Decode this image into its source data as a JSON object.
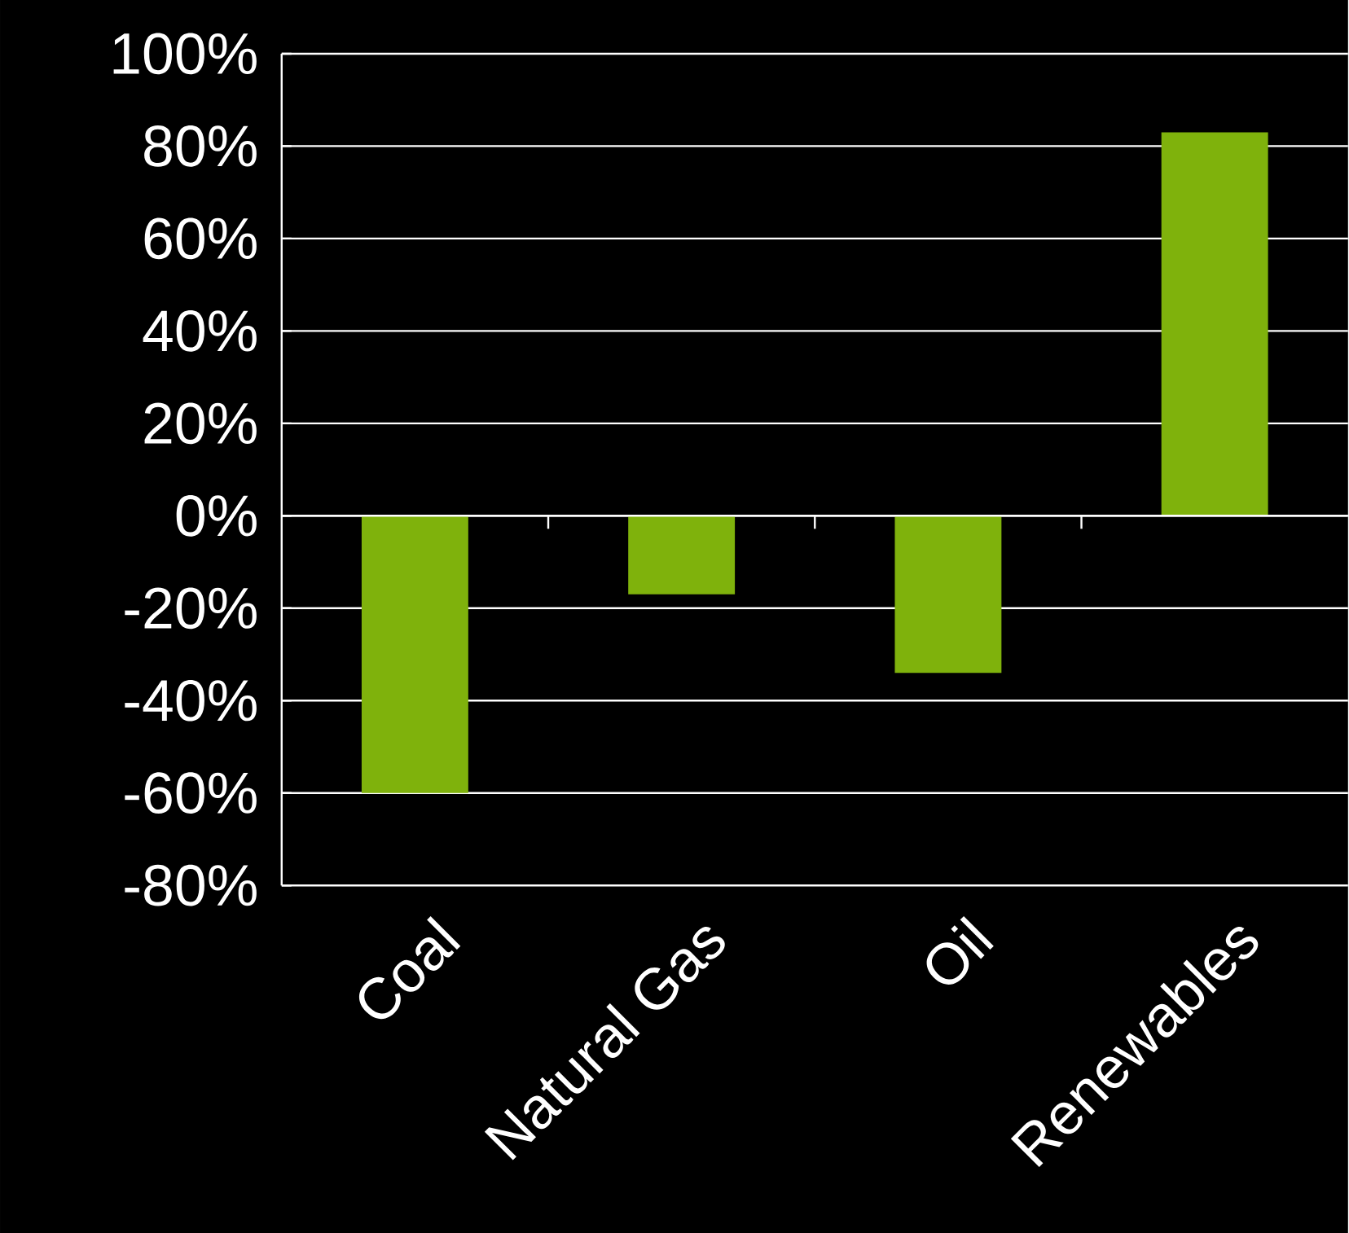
{
  "chart_data": {
    "type": "bar",
    "categories": [
      "Coal",
      "Natural Gas",
      "Oil",
      "Renewables"
    ],
    "values": [
      -60,
      -17,
      -34,
      83
    ],
    "color": "#7fb20c",
    "ylim": [
      -80,
      100
    ],
    "yticks": [
      {
        "value": -80,
        "label": "-80%"
      },
      {
        "value": -60,
        "label": "-60%"
      },
      {
        "value": -40,
        "label": "-40%"
      },
      {
        "value": -20,
        "label": "-20%"
      },
      {
        "value": 0,
        "label": "0%"
      },
      {
        "value": 20,
        "label": "20%"
      },
      {
        "value": 40,
        "label": "40%"
      },
      {
        "value": 60,
        "label": "60%"
      },
      {
        "value": 80,
        "label": "80%"
      },
      {
        "value": 100,
        "label": "100%"
      }
    ],
    "grid": "y"
  }
}
